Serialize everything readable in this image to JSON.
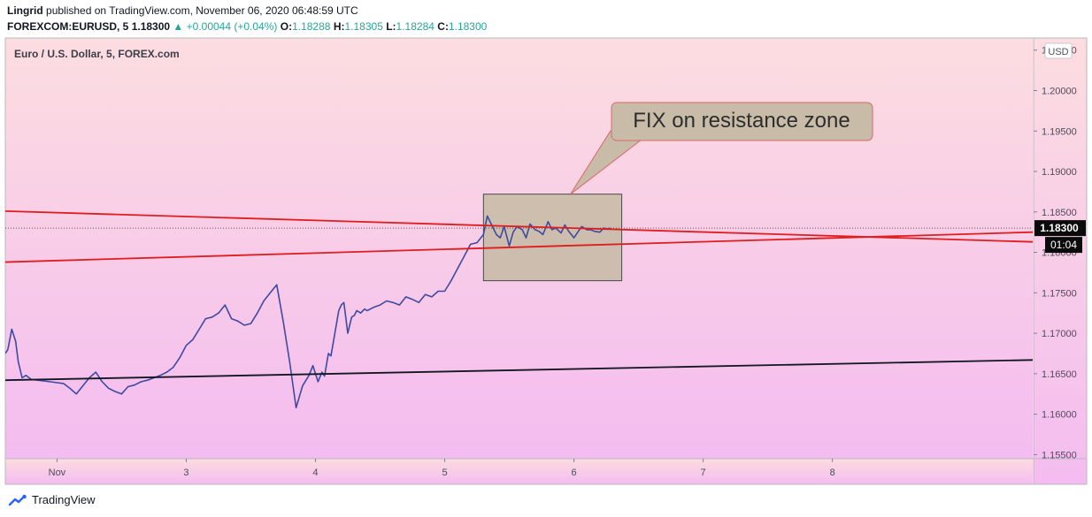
{
  "header": {
    "line1_author": "Lingrid",
    "line1_text": "published on TradingView.com, November 06, 2020 06:48:59 UTC",
    "symbol": "FOREXCOM:EURUSD, 5",
    "last": "1.18300",
    "change": "▲ +0.00044 (+0.04%)",
    "o_label": "O:",
    "o_val": "1.18288",
    "h_label": "H:",
    "h_val": "1.18305",
    "l_label": "L:",
    "l_val": "1.18284",
    "c_label": "C:",
    "c_val": "1.18300"
  },
  "chart_data": {
    "type": "line",
    "title": "Euro / U.S. Dollar, 5, FOREX.com",
    "currency": "USD",
    "x_ticks": [
      {
        "label": "Nov",
        "day": 2
      },
      {
        "label": "3",
        "day": 3
      },
      {
        "label": "4",
        "day": 4
      },
      {
        "label": "5",
        "day": 5
      },
      {
        "label": "6",
        "day": 6
      },
      {
        "label": "7",
        "day": 7
      },
      {
        "label": "8",
        "day": 8
      }
    ],
    "y_ticks": [
      "1.15500",
      "1.16000",
      "1.16500",
      "1.17000",
      "1.17500",
      "1.18000",
      "1.18500",
      "1.19000",
      "1.19500",
      "1.20000",
      "1.20500"
    ],
    "xlim": [
      1.6,
      9.55
    ],
    "ylim": [
      1.1545,
      1.2065
    ],
    "price_label": "1.18300",
    "countdown_label": "01:04",
    "last_price": 1.183,
    "series": [
      {
        "color": "#3f4aa0",
        "x": [
          1.6,
          1.62,
          1.65,
          1.68,
          1.7,
          1.73,
          1.76,
          1.8,
          1.85,
          1.9,
          1.95,
          2.0,
          2.05,
          2.1,
          2.15,
          2.2,
          2.25,
          2.3,
          2.35,
          2.4,
          2.45,
          2.5,
          2.55,
          2.6,
          2.65,
          2.7,
          2.75,
          2.8,
          2.85,
          2.9,
          2.95,
          3.0,
          3.05,
          3.1,
          3.15,
          3.2,
          3.25,
          3.3,
          3.35,
          3.4,
          3.45,
          3.5,
          3.55,
          3.6,
          3.65,
          3.7,
          3.75,
          3.8,
          3.85,
          3.9,
          3.95,
          3.98,
          4.0,
          4.02,
          4.05,
          4.07,
          4.1,
          4.12,
          4.15,
          4.18,
          4.2,
          4.22,
          4.25,
          4.28,
          4.3,
          4.32,
          4.35,
          4.38,
          4.4,
          4.45,
          4.5,
          4.55,
          4.6,
          4.65,
          4.7,
          4.75,
          4.8,
          4.85,
          4.9,
          4.95,
          5.0,
          5.05,
          5.1,
          5.15,
          5.2,
          5.25,
          5.3,
          5.33,
          5.36,
          5.4,
          5.43,
          5.46,
          5.5,
          5.53,
          5.56,
          5.6,
          5.63,
          5.66,
          5.7,
          5.73,
          5.76,
          5.8,
          5.83,
          5.86,
          5.9,
          5.93,
          5.96,
          6.0,
          6.03,
          6.06,
          6.1,
          6.13,
          6.16,
          6.2,
          6.23,
          6.26,
          6.28
        ],
        "y": [
          1.1675,
          1.168,
          1.1705,
          1.169,
          1.1665,
          1.1645,
          1.1648,
          1.1643,
          1.1642,
          1.1641,
          1.164,
          1.1639,
          1.1638,
          1.1632,
          1.1625,
          1.1635,
          1.1645,
          1.1652,
          1.164,
          1.1632,
          1.1628,
          1.1625,
          1.1634,
          1.1636,
          1.164,
          1.1642,
          1.1645,
          1.1648,
          1.1652,
          1.1658,
          1.167,
          1.1685,
          1.1692,
          1.1705,
          1.1718,
          1.172,
          1.1725,
          1.1735,
          1.1718,
          1.1715,
          1.171,
          1.1712,
          1.1725,
          1.174,
          1.175,
          1.176,
          1.1715,
          1.1665,
          1.1608,
          1.1635,
          1.1648,
          1.166,
          1.165,
          1.164,
          1.1652,
          1.1647,
          1.1675,
          1.1672,
          1.17,
          1.1728,
          1.1735,
          1.1738,
          1.17,
          1.172,
          1.1722,
          1.1728,
          1.1725,
          1.173,
          1.1728,
          1.1732,
          1.1735,
          1.174,
          1.1738,
          1.1735,
          1.1745,
          1.1742,
          1.1738,
          1.1748,
          1.1745,
          1.1752,
          1.1752,
          1.1765,
          1.178,
          1.1795,
          1.181,
          1.1812,
          1.1822,
          1.1845,
          1.1835,
          1.1822,
          1.1818,
          1.1832,
          1.1808,
          1.1825,
          1.1832,
          1.1828,
          1.1818,
          1.1835,
          1.1828,
          1.1826,
          1.1822,
          1.1838,
          1.1828,
          1.183,
          1.1824,
          1.1834,
          1.1826,
          1.1818,
          1.1825,
          1.1832,
          1.1828,
          1.1828,
          1.1826,
          1.1825,
          1.183,
          1.1829,
          1.183
        ]
      }
    ],
    "trendlines": [
      {
        "color": "#e01c1c",
        "x": [
          1.6,
          9.55
        ],
        "y": [
          1.1851,
          1.1813
        ]
      },
      {
        "color": "#e01c1c",
        "x": [
          1.6,
          9.55
        ],
        "y": [
          1.1788,
          1.1825
        ]
      },
      {
        "color": "#131722",
        "x": [
          1.6,
          9.55
        ],
        "y": [
          1.1642,
          1.1667
        ]
      }
    ],
    "zone": {
      "x": [
        5.3,
        6.37
      ],
      "y": [
        1.1765,
        1.1872
      ]
    },
    "callout": {
      "text": "FIX on resistance zone",
      "target_x": 5.98,
      "target_y": 1.1872
    }
  }
}
